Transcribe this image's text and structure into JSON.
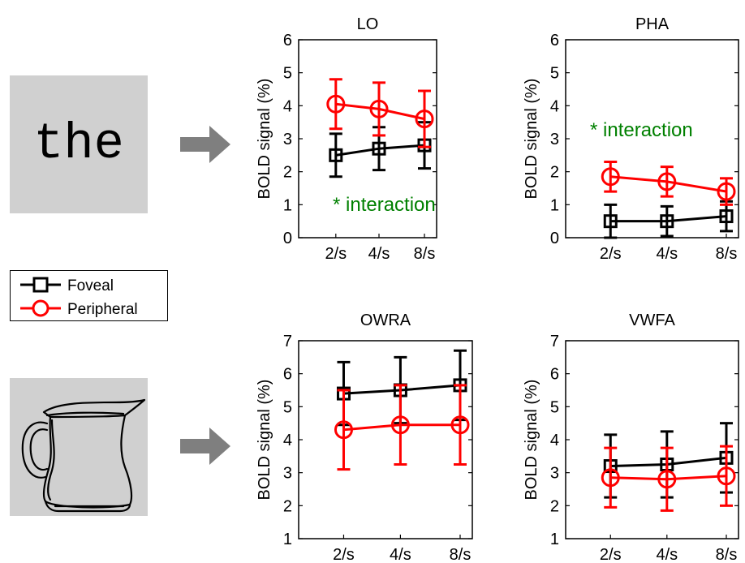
{
  "stimuli": {
    "word_text": "the",
    "picture_icon": "pitcher-drawing-icon",
    "arrow_icon": "right-arrow-icon",
    "arrow_color": "#7f7f7f",
    "stimulus_background": "#d0d0d0"
  },
  "legend": {
    "items": [
      {
        "label": "Foveal",
        "color": "#000000",
        "marker": "square"
      },
      {
        "label": "Peripheral",
        "color": "#ff0000",
        "marker": "circle"
      }
    ]
  },
  "annotation_color": "#008000",
  "chart_data": [
    {
      "type": "line",
      "title": "LO",
      "ylabel": "BOLD signal (%)",
      "categories": [
        "2/s",
        "4/s",
        "8/s"
      ],
      "ylim": [
        0,
        6
      ],
      "yticks": [
        0,
        1,
        2,
        3,
        4,
        5,
        6
      ],
      "annotation": "* interaction",
      "series": [
        {
          "name": "Foveal",
          "color": "#000000",
          "marker": "square",
          "values": [
            2.5,
            2.7,
            2.8
          ],
          "err": [
            0.65,
            0.65,
            0.7
          ]
        },
        {
          "name": "Peripheral",
          "color": "#ff0000",
          "marker": "circle",
          "values": [
            4.05,
            3.9,
            3.6
          ],
          "err": [
            0.75,
            0.8,
            0.85
          ]
        }
      ]
    },
    {
      "type": "line",
      "title": "PHA",
      "ylabel": "BOLD signal (%)",
      "categories": [
        "2/s",
        "4/s",
        "8/s"
      ],
      "ylim": [
        0,
        6
      ],
      "yticks": [
        0,
        1,
        2,
        3,
        4,
        5,
        6
      ],
      "annotation": "* interaction",
      "series": [
        {
          "name": "Foveal",
          "color": "#000000",
          "marker": "square",
          "values": [
            0.5,
            0.5,
            0.65
          ],
          "err": [
            0.5,
            0.45,
            0.45
          ]
        },
        {
          "name": "Peripheral",
          "color": "#ff0000",
          "marker": "circle",
          "values": [
            1.85,
            1.7,
            1.4
          ],
          "err": [
            0.45,
            0.45,
            0.4
          ]
        }
      ]
    },
    {
      "type": "line",
      "title": "OWRA",
      "ylabel": "BOLD signal (%)",
      "categories": [
        "2/s",
        "4/s",
        "8/s"
      ],
      "ylim": [
        1,
        7
      ],
      "yticks": [
        1,
        2,
        3,
        4,
        5,
        6,
        7
      ],
      "annotation": "",
      "series": [
        {
          "name": "Foveal",
          "color": "#000000",
          "marker": "square",
          "values": [
            5.4,
            5.5,
            5.65
          ],
          "err": [
            0.95,
            1.0,
            1.05
          ]
        },
        {
          "name": "Peripheral",
          "color": "#ff0000",
          "marker": "circle",
          "values": [
            4.3,
            4.45,
            4.45
          ],
          "err": [
            1.2,
            1.2,
            1.2
          ]
        }
      ]
    },
    {
      "type": "line",
      "title": "VWFA",
      "ylabel": "BOLD signal (%)",
      "categories": [
        "2/s",
        "4/s",
        "8/s"
      ],
      "ylim": [
        1,
        7
      ],
      "yticks": [
        1,
        2,
        3,
        4,
        5,
        6,
        7
      ],
      "annotation": "",
      "series": [
        {
          "name": "Foveal",
          "color": "#000000",
          "marker": "square",
          "values": [
            3.2,
            3.25,
            3.45
          ],
          "err": [
            0.95,
            1.0,
            1.05
          ]
        },
        {
          "name": "Peripheral",
          "color": "#ff0000",
          "marker": "circle",
          "values": [
            2.85,
            2.8,
            2.9
          ],
          "err": [
            0.9,
            0.95,
            0.9
          ]
        }
      ]
    }
  ]
}
